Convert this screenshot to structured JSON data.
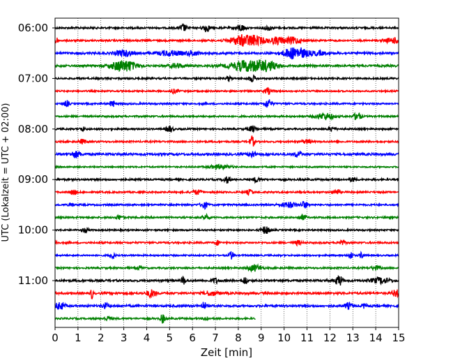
{
  "chart_data": {
    "type": "line",
    "xlabel": "Zeit  [min]",
    "ylabel": "UTC (Lokalzeit = UTC + 02:00)",
    "xlim": [
      0,
      15
    ],
    "x_ticks": [
      "0",
      "1",
      "2",
      "3",
      "4",
      "5",
      "6",
      "7",
      "8",
      "9",
      "10",
      "11",
      "12",
      "13",
      "14",
      "15"
    ],
    "y_tick_labels": [
      "06:00",
      "07:00",
      "08:00",
      "09:00",
      "10:00",
      "11:00"
    ],
    "grid": "vertical dotted at each minute",
    "trace_interval_minutes": 15,
    "color_cycle": [
      "#000000",
      "#ff0000",
      "#0000ff",
      "#008000"
    ],
    "rows": [
      {
        "start": "06:00",
        "color": "#000000",
        "end_min": 15,
        "noise": 0.14,
        "events": [
          {
            "t": 5.6,
            "amp": 0.55,
            "w": 0.15
          },
          {
            "t": 6.6,
            "amp": 0.6,
            "w": 0.15
          },
          {
            "t": 8.1,
            "amp": 0.5,
            "w": 0.2
          },
          {
            "t": 9.3,
            "amp": 0.35,
            "w": 0.2
          }
        ]
      },
      {
        "start": "06:15",
        "color": "#ff0000",
        "end_min": 15,
        "noise": 0.14,
        "events": [
          {
            "t": 0.05,
            "amp": 0.8,
            "w": 0.05
          },
          {
            "t": 8.4,
            "amp": 1.0,
            "w": 0.7
          },
          {
            "t": 9.7,
            "amp": 0.5,
            "w": 0.3
          },
          {
            "t": 10.4,
            "amp": 0.5,
            "w": 0.4
          },
          {
            "t": 14.8,
            "amp": 0.4,
            "w": 0.4
          }
        ]
      },
      {
        "start": "06:30",
        "color": "#0000ff",
        "end_min": 15,
        "noise": 0.16,
        "events": [
          {
            "t": 3.0,
            "amp": 0.45,
            "w": 0.4
          },
          {
            "t": 5.0,
            "amp": 0.4,
            "w": 0.5
          },
          {
            "t": 6.0,
            "amp": 0.35,
            "w": 0.3
          },
          {
            "t": 10.5,
            "amp": 1.0,
            "w": 0.5
          },
          {
            "t": 11.5,
            "amp": 0.3,
            "w": 0.3
          }
        ]
      },
      {
        "start": "06:45",
        "color": "#008000",
        "end_min": 15,
        "noise": 0.16,
        "events": [
          {
            "t": 3.0,
            "amp": 1.0,
            "w": 0.5
          },
          {
            "t": 5.3,
            "amp": 0.35,
            "w": 0.3
          },
          {
            "t": 8.4,
            "amp": 0.8,
            "w": 0.8
          },
          {
            "t": 9.0,
            "amp": 0.9,
            "w": 0.6
          }
        ]
      },
      {
        "start": "07:00",
        "color": "#000000",
        "end_min": 15,
        "noise": 0.13,
        "events": [
          {
            "t": 7.6,
            "amp": 0.45,
            "w": 0.1
          },
          {
            "t": 8.6,
            "amp": 0.5,
            "w": 0.15
          }
        ]
      },
      {
        "start": "07:15",
        "color": "#ff0000",
        "end_min": 15,
        "noise": 0.12,
        "events": [
          {
            "t": 5.2,
            "amp": 0.3,
            "w": 0.2
          },
          {
            "t": 9.3,
            "amp": 0.5,
            "w": 0.15
          }
        ]
      },
      {
        "start": "07:30",
        "color": "#0000ff",
        "end_min": 15,
        "noise": 0.13,
        "events": [
          {
            "t": 0.5,
            "amp": 0.5,
            "w": 0.1
          },
          {
            "t": 2.5,
            "amp": 0.6,
            "w": 0.1
          },
          {
            "t": 9.3,
            "amp": 0.7,
            "w": 0.15
          }
        ]
      },
      {
        "start": "07:45",
        "color": "#008000",
        "end_min": 15,
        "noise": 0.13,
        "events": [
          {
            "t": 11.8,
            "amp": 0.5,
            "w": 0.4
          },
          {
            "t": 13.2,
            "amp": 0.7,
            "w": 0.15
          }
        ]
      },
      {
        "start": "08:00",
        "color": "#000000",
        "end_min": 15,
        "noise": 0.13,
        "events": [
          {
            "t": 1.2,
            "amp": 0.35,
            "w": 0.1
          },
          {
            "t": 5.0,
            "amp": 0.5,
            "w": 0.15
          },
          {
            "t": 8.6,
            "amp": 0.4,
            "w": 0.2
          },
          {
            "t": 12.1,
            "amp": 0.35,
            "w": 0.15
          }
        ]
      },
      {
        "start": "08:15",
        "color": "#ff0000",
        "end_min": 15,
        "noise": 0.13,
        "events": [
          {
            "t": 1.2,
            "amp": 0.35,
            "w": 0.15
          },
          {
            "t": 8.6,
            "amp": 0.9,
            "w": 0.1
          },
          {
            "t": 11.0,
            "amp": 0.3,
            "w": 0.2
          }
        ]
      },
      {
        "start": "08:30",
        "color": "#0000ff",
        "end_min": 15,
        "noise": 0.17,
        "events": [
          {
            "t": 0.9,
            "amp": 0.5,
            "w": 0.2
          },
          {
            "t": 8.6,
            "amp": 0.5,
            "w": 0.15
          },
          {
            "t": 10.6,
            "amp": 0.45,
            "w": 0.15
          }
        ]
      },
      {
        "start": "08:45",
        "color": "#008000",
        "end_min": 15,
        "noise": 0.11,
        "events": [
          {
            "t": 7.2,
            "amp": 0.3,
            "w": 0.5
          }
        ]
      },
      {
        "start": "09:00",
        "color": "#000000",
        "end_min": 15,
        "noise": 0.14,
        "events": [
          {
            "t": 7.5,
            "amp": 0.5,
            "w": 0.15
          },
          {
            "t": 8.8,
            "amp": 0.4,
            "w": 0.15
          },
          {
            "t": 13.0,
            "amp": 0.35,
            "w": 0.15
          }
        ]
      },
      {
        "start": "09:15",
        "color": "#ff0000",
        "end_min": 15,
        "noise": 0.13,
        "events": [
          {
            "t": 0.8,
            "amp": 0.4,
            "w": 0.15
          },
          {
            "t": 6.2,
            "amp": 0.35,
            "w": 0.2
          },
          {
            "t": 8.5,
            "amp": 0.4,
            "w": 0.15
          },
          {
            "t": 12.3,
            "amp": 0.4,
            "w": 0.15
          }
        ]
      },
      {
        "start": "09:30",
        "color": "#0000ff",
        "end_min": 15,
        "noise": 0.13,
        "events": [
          {
            "t": 0.7,
            "amp": 0.35,
            "w": 0.1
          },
          {
            "t": 6.5,
            "amp": 0.6,
            "w": 0.15
          },
          {
            "t": 10.2,
            "amp": 0.4,
            "w": 0.4
          },
          {
            "t": 10.9,
            "amp": 0.5,
            "w": 0.15
          }
        ]
      },
      {
        "start": "09:45",
        "color": "#008000",
        "end_min": 15,
        "noise": 0.13,
        "events": [
          {
            "t": 2.8,
            "amp": 0.35,
            "w": 0.15
          },
          {
            "t": 6.6,
            "amp": 0.4,
            "w": 0.15
          },
          {
            "t": 10.8,
            "amp": 0.45,
            "w": 0.15
          }
        ]
      },
      {
        "start": "10:00",
        "color": "#000000",
        "end_min": 15,
        "noise": 0.12,
        "events": [
          {
            "t": 1.3,
            "amp": 0.3,
            "w": 0.15
          },
          {
            "t": 9.2,
            "amp": 0.6,
            "w": 0.2
          }
        ]
      },
      {
        "start": "10:15",
        "color": "#ff0000",
        "end_min": 15,
        "noise": 0.13,
        "events": [
          {
            "t": 0.05,
            "amp": 0.7,
            "w": 0.05
          },
          {
            "t": 7.1,
            "amp": 0.35,
            "w": 0.1
          },
          {
            "t": 10.6,
            "amp": 0.35,
            "w": 0.15
          },
          {
            "t": 12.5,
            "amp": 0.35,
            "w": 0.15
          }
        ]
      },
      {
        "start": "10:30",
        "color": "#0000ff",
        "end_min": 15,
        "noise": 0.12,
        "events": [
          {
            "t": 2.5,
            "amp": 0.6,
            "w": 0.1
          },
          {
            "t": 7.7,
            "amp": 0.6,
            "w": 0.1
          },
          {
            "t": 12.9,
            "amp": 0.6,
            "w": 0.1
          },
          {
            "t": 13.4,
            "amp": 0.5,
            "w": 0.1
          }
        ]
      },
      {
        "start": "10:45",
        "color": "#008000",
        "end_min": 15,
        "noise": 0.13,
        "events": [
          {
            "t": 3.7,
            "amp": 0.3,
            "w": 0.1
          },
          {
            "t": 8.7,
            "amp": 0.5,
            "w": 0.3
          },
          {
            "t": 14.0,
            "amp": 0.3,
            "w": 0.2
          }
        ]
      },
      {
        "start": "11:00",
        "color": "#000000",
        "end_min": 15,
        "noise": 0.16,
        "events": [
          {
            "t": 5.6,
            "amp": 0.6,
            "w": 0.1
          },
          {
            "t": 7.0,
            "amp": 0.4,
            "w": 0.15
          },
          {
            "t": 8.3,
            "amp": 0.6,
            "w": 0.1
          },
          {
            "t": 12.4,
            "amp": 0.8,
            "w": 0.15
          },
          {
            "t": 14.2,
            "amp": 0.45,
            "w": 0.4
          }
        ]
      },
      {
        "start": "11:15",
        "color": "#ff0000",
        "end_min": 15,
        "noise": 0.16,
        "events": [
          {
            "t": 1.6,
            "amp": 1.0,
            "w": 0.05
          },
          {
            "t": 4.2,
            "amp": 0.6,
            "w": 0.2
          },
          {
            "t": 6.8,
            "amp": 0.35,
            "w": 0.3
          },
          {
            "t": 14.9,
            "amp": 0.5,
            "w": 0.2
          }
        ]
      },
      {
        "start": "11:30",
        "color": "#0000ff",
        "end_min": 15,
        "noise": 0.16,
        "events": [
          {
            "t": 0.2,
            "amp": 0.6,
            "w": 0.2
          },
          {
            "t": 2.2,
            "amp": 0.4,
            "w": 0.15
          },
          {
            "t": 6.5,
            "amp": 0.6,
            "w": 0.1
          },
          {
            "t": 12.8,
            "amp": 0.45,
            "w": 0.15
          },
          {
            "t": 13.5,
            "amp": 0.35,
            "w": 0.1
          }
        ]
      },
      {
        "start": "11:45",
        "color": "#008000",
        "end_min": 8.75,
        "noise": 0.13,
        "events": [
          {
            "t": 2.3,
            "amp": 0.3,
            "w": 0.15
          },
          {
            "t": 4.7,
            "amp": 0.7,
            "w": 0.1
          },
          {
            "t": 6.6,
            "amp": 0.4,
            "w": 0.1
          }
        ]
      }
    ]
  }
}
